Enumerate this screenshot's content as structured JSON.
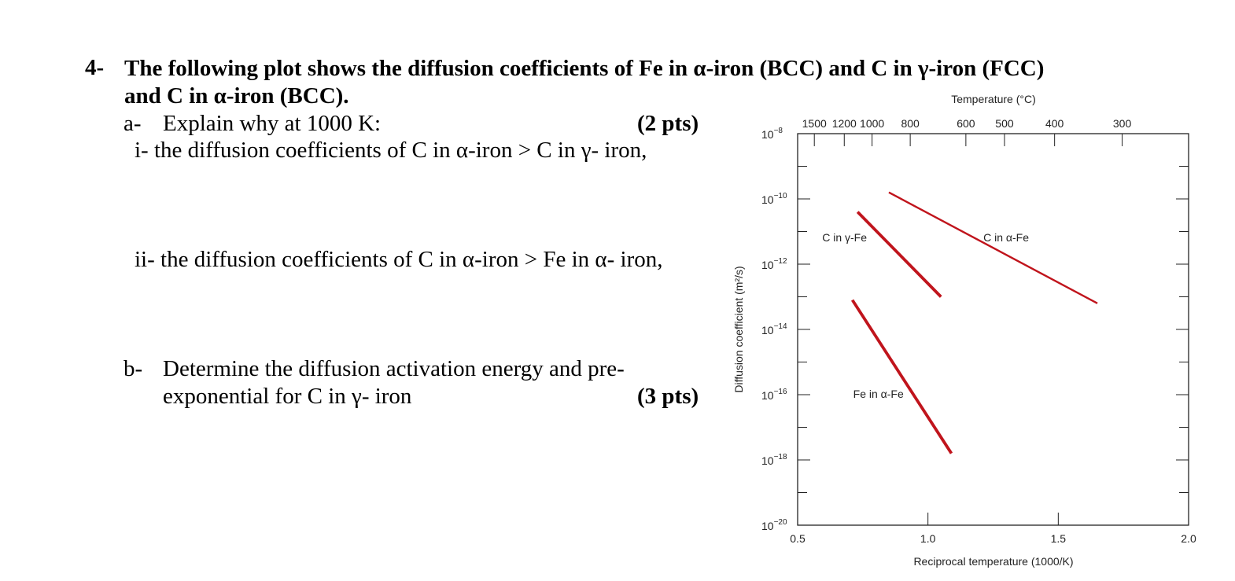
{
  "question": {
    "number": "4-",
    "title_line1": "The following plot shows the diffusion coefficients of Fe in α-iron (BCC) and C in γ-iron (FCC)",
    "title_line2": "and C in α-iron (BCC)."
  },
  "part_a": {
    "marker": "a-",
    "text": "Explain why at 1000 K:",
    "points": "(2 pts)",
    "item_i": "i- the diffusion coefficients of C in α-iron > C in γ- iron,",
    "item_ii": "ii- the diffusion coefficients of C in α-iron > Fe in α- iron,"
  },
  "part_b": {
    "marker": "b-",
    "text_line1": "Determine the diffusion activation energy and pre-",
    "text_line2": "exponential for C in γ- iron",
    "points": "(3 pts)"
  },
  "chart_data": {
    "type": "line",
    "title": "",
    "xlabel": "Reciprocal temperature (1000/K)",
    "ylabel": "Diffusion coefficient (m²/s)",
    "top_axis_label": "Temperature (°C)",
    "xlim": [
      0.5,
      2.0
    ],
    "ylim_log10": [
      -20,
      -8
    ],
    "y_scale": "log",
    "x_ticks": [
      0.5,
      1.0,
      1.5,
      2.0
    ],
    "x_tick_labels": [
      "0.5",
      "1.0",
      "1.5",
      "2.0"
    ],
    "y_ticks_exp": [
      -8,
      -10,
      -12,
      -14,
      -16,
      -18,
      -20
    ],
    "top_ticks_celsius": [
      1500,
      1200,
      1000,
      800,
      600,
      500,
      400,
      300
    ],
    "top_tick_labels": [
      "1500",
      "1200",
      "1000",
      "800",
      "600",
      "500",
      "400",
      "300"
    ],
    "grid": false,
    "line_color": "#c0141c",
    "series": [
      {
        "name": "C in α-Fe",
        "x": [
          0.85,
          1.65
        ],
        "log10_y": [
          -9.8,
          -13.2
        ]
      },
      {
        "name": "C in γ-Fe",
        "x": [
          0.73,
          1.05
        ],
        "log10_y": [
          -10.4,
          -13.0
        ]
      },
      {
        "name": "Fe in α-Fe",
        "x": [
          0.71,
          1.09
        ],
        "log10_y": [
          -13.1,
          -17.8
        ]
      }
    ]
  }
}
